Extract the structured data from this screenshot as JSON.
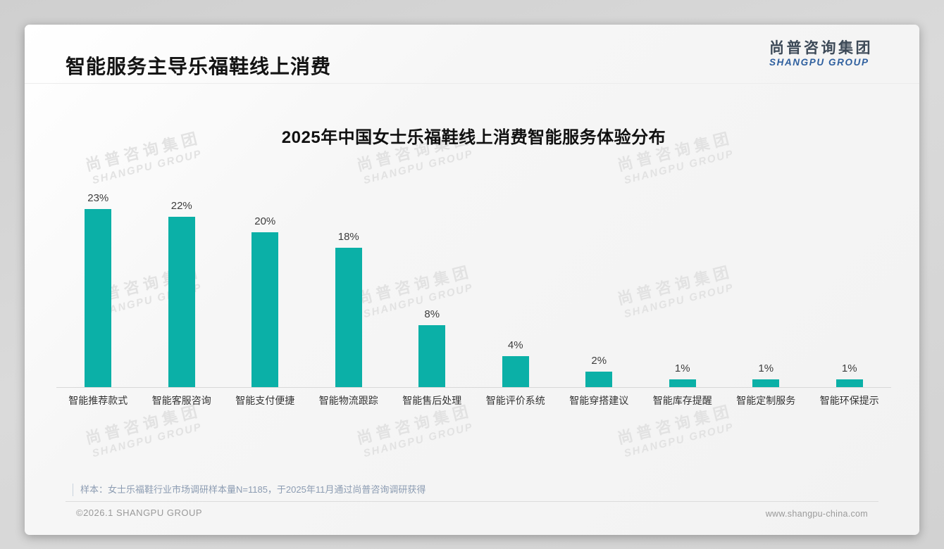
{
  "page": {
    "title": "智能服务主导乐福鞋线上消费",
    "logo": {
      "cn": "尚普咨询集团",
      "en": "SHANGPU GROUP"
    },
    "watermark": {
      "cn": "尚普咨询集团",
      "en": "SHANGPU GROUP"
    },
    "note": "样本：女士乐福鞋行业市场调研样本量N=1185，于2025年11月通过尚普咨询调研获得",
    "footer_left": "©2026.1 SHANGPU GROUP",
    "footer_right": "www.shangpu-china.com"
  },
  "colors": {
    "bar": "#0bb0a7",
    "logo_cn": "#3d4a58",
    "logo_en": "#2e5f9e",
    "watermark": "#e2e2e2"
  },
  "chart_data": {
    "type": "bar",
    "title": "2025年中国女士乐福鞋线上消费智能服务体验分布",
    "categories": [
      "智能推荐款式",
      "智能客服咨询",
      "智能支付便捷",
      "智能物流跟踪",
      "智能售后处理",
      "智能评价系统",
      "智能穿搭建议",
      "智能库存提醒",
      "智能定制服务",
      "智能环保提示"
    ],
    "values": [
      23,
      22,
      20,
      18,
      8,
      4,
      2,
      1,
      1,
      1
    ],
    "unit": "%",
    "data_labels": [
      "23%",
      "22%",
      "20%",
      "18%",
      "8%",
      "4%",
      "2%",
      "1%",
      "1%",
      "1%"
    ],
    "xlabel": "",
    "ylabel": "",
    "ylim": [
      0,
      25
    ],
    "grid": false,
    "legend": false,
    "bar_color": "#0bb0a7"
  }
}
